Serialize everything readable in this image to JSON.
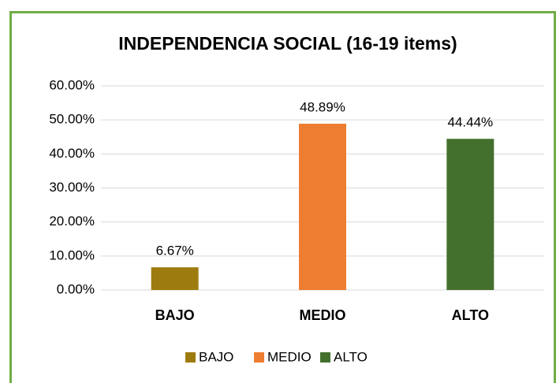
{
  "chart_data": {
    "type": "bar",
    "title": "INDEPENDENCIA SOCIAL (16-19 items)",
    "categories": [
      "BAJO",
      "MEDIO",
      "ALTO"
    ],
    "values": [
      6.67,
      48.89,
      44.44
    ],
    "value_labels": [
      "6.67%",
      "48.89%",
      "44.44%"
    ],
    "colors": [
      "#9e7b0e",
      "#ed7d31",
      "#44702e"
    ],
    "ylim": [
      0,
      60
    ],
    "yticks": [
      {
        "value": 0,
        "label": "0.00%"
      },
      {
        "value": 10,
        "label": "10.00%"
      },
      {
        "value": 20,
        "label": "20.00%"
      },
      {
        "value": 30,
        "label": "30.00%"
      },
      {
        "value": 40,
        "label": "40.00%"
      },
      {
        "value": 50,
        "label": "50.00%"
      },
      {
        "value": 60,
        "label": "60.00%"
      }
    ],
    "grid": true,
    "legend": "bottom"
  }
}
